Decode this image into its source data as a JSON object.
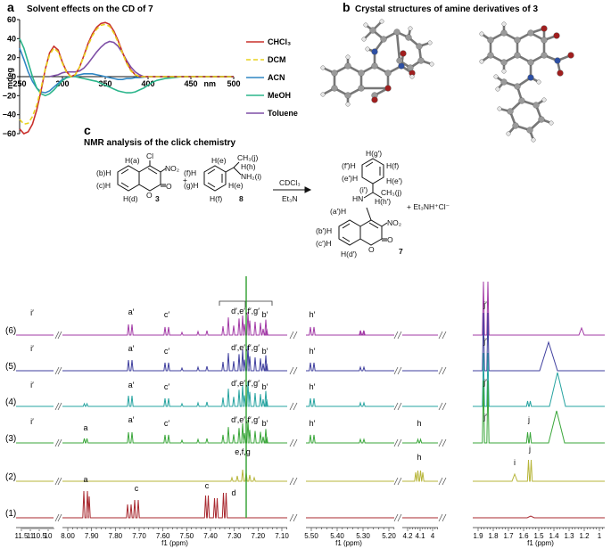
{
  "panel_a": {
    "letter": "a",
    "title": "Solvent effects on the CD of 7",
    "ylabel": "mdeg",
    "xlabel": "nm",
    "x_ticks": [
      "250",
      "300",
      "350",
      "400",
      "450",
      "500"
    ],
    "y_ticks": [
      "60",
      "40",
      "20",
      "0",
      "−20",
      "−40",
      "−60"
    ],
    "colors": {
      "chcl3": "#c9302c",
      "dcm": "#e8d21d",
      "acn": "#2f86c4",
      "meoh": "#2bb58b",
      "toluene": "#7e4fa6"
    }
  },
  "panel_b": {
    "letter": "b",
    "title": "Crystal structures of amine derivatives of 3"
  },
  "panel_c": {
    "letter": "c",
    "title": "NMR analysis of the click chemistry",
    "reagent_top": "CDCl₃",
    "reagent_bottom": "Et₃N",
    "byproduct": "+ Et₃NH⁺Cl⁻",
    "plus": "+",
    "compound_3": {
      "number": "3",
      "substituent_cl": "Cl",
      "substituent_no2": "NO₂",
      "label_a": "H(a)",
      "label_b": "(b)H",
      "label_c": "(c)H",
      "label_d": "H(d)",
      "o1": "O",
      "o2": "O"
    },
    "compound_8": {
      "number": "8",
      "label_e1": "H(e)",
      "label_e2": "H(e)",
      "label_f1": "(f)H",
      "label_g": "(g)H",
      "label_f2": "H(f)",
      "ch3": "CH₃(j)",
      "hh": "H(h)",
      "nh2": "NH₂(i)"
    },
    "compound_7": {
      "number": "7",
      "label_g": "H(g′)",
      "label_f1": "(f′)H",
      "label_f2": "H(f)",
      "label_e1": "(e′)H",
      "label_e2": "H(e′)",
      "hn": "HN",
      "i": "(i′)",
      "ch3": "CH₃(j)",
      "hh": "H(h′)",
      "label_a": "(a′)H",
      "label_b": "(b′)H",
      "label_c": "(c′)H",
      "label_d": "H(d′)",
      "no2": "NO₂",
      "o1": "O",
      "o2": "O"
    }
  },
  "chart_data": [
    {
      "type": "line",
      "title": "Solvent effects on the CD of 7",
      "xlabel": "nm",
      "ylabel": "mdeg",
      "xlim": [
        250,
        500
      ],
      "ylim": [
        -60,
        60
      ],
      "x_ticks": [
        250,
        300,
        350,
        400,
        450,
        500
      ],
      "y_ticks": [
        60,
        40,
        20,
        0,
        -20,
        -40,
        -60
      ],
      "legend_position": "right",
      "series": [
        {
          "name": "CHCl₃",
          "color": "#c9302c",
          "dash": "solid",
          "x": [
            250,
            255,
            260,
            265,
            270,
            275,
            280,
            285,
            290,
            295,
            300,
            305,
            310,
            315,
            320,
            325,
            330,
            335,
            340,
            345,
            350,
            355,
            360,
            365,
            370,
            375,
            380,
            385,
            390,
            395,
            400,
            410,
            420,
            430,
            440,
            450,
            460,
            470,
            480,
            490,
            500
          ],
          "y": [
            -55,
            -60,
            -58,
            -50,
            -35,
            -15,
            8,
            25,
            32,
            28,
            15,
            5,
            0,
            2,
            10,
            22,
            35,
            45,
            52,
            56,
            57,
            55,
            48,
            38,
            26,
            15,
            7,
            2,
            0,
            0,
            0,
            0,
            0,
            0,
            0,
            0,
            0,
            0,
            0,
            0,
            0
          ]
        },
        {
          "name": "DCM",
          "color": "#e8d21d",
          "dash": "dashed",
          "x": [
            250,
            255,
            260,
            265,
            270,
            275,
            280,
            285,
            290,
            295,
            300,
            305,
            310,
            315,
            320,
            325,
            330,
            335,
            340,
            345,
            350,
            355,
            360,
            365,
            370,
            375,
            380,
            385,
            390,
            395,
            400,
            410,
            420,
            430,
            440,
            450,
            460,
            470,
            480,
            490,
            500
          ],
          "y": [
            -45,
            -50,
            -49,
            -42,
            -30,
            -12,
            8,
            23,
            30,
            26,
            14,
            4,
            0,
            2,
            10,
            21,
            33,
            43,
            50,
            54,
            55,
            53,
            46,
            36,
            25,
            14,
            6,
            2,
            0,
            0,
            0,
            0,
            0,
            0,
            0,
            0,
            0,
            0,
            0,
            0,
            0
          ]
        },
        {
          "name": "ACN",
          "color": "#2f86c4",
          "dash": "solid",
          "x": [
            250,
            255,
            260,
            265,
            270,
            275,
            280,
            285,
            290,
            295,
            300,
            305,
            310,
            315,
            320,
            325,
            330,
            335,
            340,
            345,
            350,
            355,
            360,
            365,
            370,
            375,
            380,
            385,
            390,
            400,
            420,
            440,
            460,
            480,
            500
          ],
          "y": [
            30,
            18,
            5,
            -5,
            -12,
            -16,
            -17,
            -15,
            -11,
            -7,
            -3,
            -1,
            0,
            1,
            2,
            3,
            3,
            3,
            2,
            1,
            0,
            -1,
            -2,
            -3,
            -3,
            -2,
            -2,
            -1,
            -1,
            0,
            0,
            0,
            0,
            0,
            0
          ]
        },
        {
          "name": "MeOH",
          "color": "#2bb58b",
          "dash": "solid",
          "x": [
            250,
            255,
            260,
            265,
            270,
            275,
            280,
            285,
            290,
            295,
            300,
            305,
            310,
            315,
            320,
            325,
            330,
            335,
            340,
            345,
            350,
            355,
            360,
            365,
            370,
            375,
            380,
            385,
            390,
            395,
            400,
            405,
            410,
            420,
            430,
            440,
            460,
            480,
            500
          ],
          "y": [
            40,
            30,
            15,
            0,
            -12,
            -18,
            -20,
            -18,
            -14,
            -9,
            -4,
            -1,
            0,
            0,
            -1,
            -2,
            -3,
            -4,
            -5,
            -7,
            -9,
            -11,
            -13,
            -15,
            -16,
            -17,
            -17,
            -16,
            -14,
            -12,
            -9,
            -6,
            -4,
            -2,
            -1,
            0,
            0,
            0,
            0
          ]
        },
        {
          "name": "Toluene",
          "color": "#7e4fa6",
          "dash": "solid",
          "x": [
            285,
            290,
            295,
            300,
            305,
            310,
            315,
            320,
            325,
            330,
            335,
            340,
            345,
            350,
            355,
            360,
            365,
            370,
            375,
            380,
            385,
            390,
            395,
            400,
            410,
            420,
            430,
            440,
            450,
            460,
            470,
            480,
            490,
            500
          ],
          "y": [
            0,
            1,
            2,
            4,
            5,
            5,
            5,
            6,
            9,
            14,
            20,
            26,
            31,
            35,
            37,
            36,
            32,
            25,
            17,
            10,
            5,
            2,
            0,
            0,
            0,
            0,
            0,
            0,
            0,
            0,
            0,
            0,
            0,
            0
          ]
        }
      ]
    },
    {
      "type": "line",
      "title": "NMR analysis of the click chemistry",
      "xlabel": "f1 (ppm)",
      "axis_segments": [
        {
          "ticks": [
            "11.5",
            "11",
            "10.5",
            "10"
          ]
        },
        {
          "ticks": [
            "8.00",
            "7.90",
            "7.80",
            "7.70",
            "7.60",
            "7.50",
            "7.40",
            "7.30",
            "7.20",
            "7.10"
          ]
        },
        {
          "ticks": [
            "5.50",
            "5.40",
            "5.30",
            "5.20"
          ]
        },
        {
          "ticks": [
            "4.2",
            "4.1",
            "4"
          ]
        },
        {
          "ticks": [
            "1.9",
            "1.8",
            "1.7",
            "1.6",
            "1.5",
            "1.4",
            "1.3",
            "1.2",
            "1"
          ]
        }
      ],
      "series": [
        {
          "name": "(6)",
          "color": "#a23aa6",
          "labels": [
            "i′",
            "a′",
            "c′",
            "d′,e′,f′,g′",
            "b′",
            "h′",
            "j′"
          ]
        },
        {
          "name": "(5)",
          "color": "#3f3f9e",
          "labels": [
            "i′",
            "a′",
            "c′",
            "d′,e′,f′,g′",
            "b′",
            "h′",
            "j′"
          ]
        },
        {
          "name": "(4)",
          "color": "#26a3a0",
          "labels": [
            "i′",
            "a′",
            "c′",
            "d′,e′,f′,g′",
            "b′",
            "h′",
            "j′"
          ]
        },
        {
          "name": "(3)",
          "color": "#3aa63a",
          "labels": [
            "i′",
            "a",
            "a′",
            "c′",
            "d′,e′,f′,g′",
            "b′",
            "h′",
            "h",
            "j′",
            "j"
          ]
        },
        {
          "name": "(2)",
          "color": "#b7b53a",
          "labels": [
            "e,f,g",
            "h",
            "i",
            "j"
          ]
        },
        {
          "name": "(1)",
          "color": "#a8282f",
          "labels": [
            "a",
            "c",
            "c",
            "d"
          ]
        }
      ]
    }
  ]
}
